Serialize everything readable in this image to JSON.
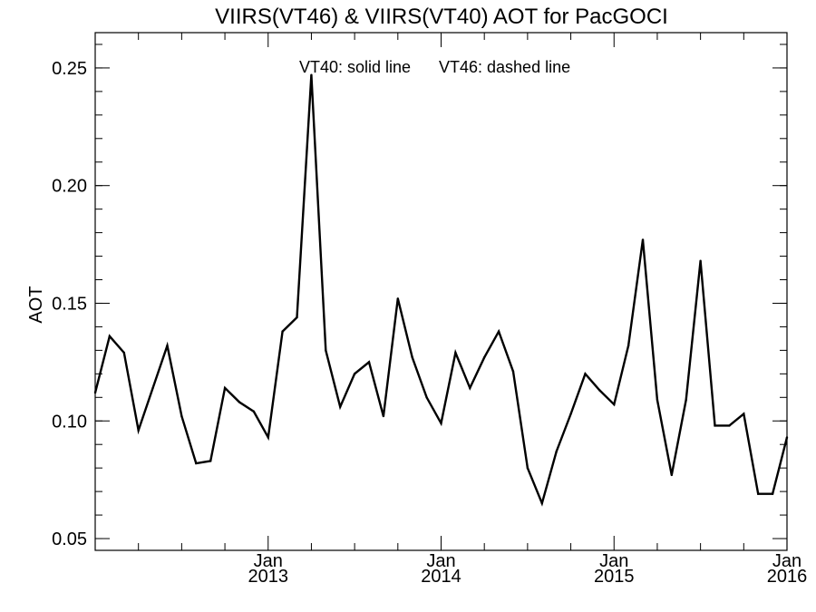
{
  "chart_data": {
    "type": "line",
    "title": "VIIRS(VT46) & VIIRS(VT40)  AOT for PacGOCI",
    "ylabel": "AOT",
    "xlabel": "",
    "annotation_solid": "VT40: solid line",
    "annotation_dashed": "VT46: dashed line",
    "xlim": [
      "2012-01-01",
      "2016-01-01"
    ],
    "ylim": [
      0.045,
      0.265
    ],
    "y_ticks": [
      "0.05",
      "0.10",
      "0.15",
      "0.20",
      "0.25"
    ],
    "y_tick_values": [
      0.05,
      0.1,
      0.15,
      0.2,
      0.25
    ],
    "x_ticks": [
      {
        "date": "2013-01-01",
        "month": "Jan",
        "year": "2013"
      },
      {
        "date": "2014-01-01",
        "month": "Jan",
        "year": "2014"
      },
      {
        "date": "2015-01-01",
        "month": "Jan",
        "year": "2015"
      },
      {
        "date": "2016-01-01",
        "month": "Jan",
        "year": "2016"
      }
    ],
    "series": [
      {
        "style": "solid",
        "color": "#000000",
        "x": [
          "2012-01",
          "2012-02",
          "2012-03",
          "2012-04",
          "2012-05",
          "2012-06",
          "2012-07",
          "2012-08",
          "2012-09",
          "2012-10",
          "2012-11",
          "2012-12",
          "2013-01",
          "2013-02",
          "2013-03",
          "2013-04",
          "2013-05",
          "2013-06",
          "2013-07",
          "2013-08",
          "2013-09",
          "2013-10",
          "2013-11",
          "2013-12",
          "2014-01",
          "2014-02",
          "2014-03",
          "2014-04",
          "2014-05",
          "2014-06",
          "2014-07",
          "2014-08",
          "2014-09",
          "2014-10",
          "2014-11",
          "2014-12",
          "2015-01",
          "2015-02",
          "2015-03",
          "2015-04",
          "2015-05",
          "2015-06",
          "2015-07",
          "2015-08",
          "2015-09",
          "2015-10",
          "2015-11",
          "2015-12",
          "2016-01"
        ],
        "y": [
          0.112,
          0.136,
          0.129,
          0.096,
          0.114,
          0.132,
          0.102,
          0.082,
          0.083,
          0.114,
          0.108,
          0.104,
          0.093,
          0.138,
          0.144,
          0.247,
          0.13,
          0.106,
          0.12,
          0.125,
          0.102,
          0.152,
          0.127,
          0.11,
          0.099,
          0.129,
          0.114,
          0.127,
          0.138,
          0.121,
          0.08,
          0.065,
          0.087,
          0.103,
          0.12,
          0.113,
          0.107,
          0.132,
          0.177,
          0.109,
          0.077,
          0.109,
          0.168,
          0.098,
          0.098,
          0.103,
          0.069,
          0.069,
          0.093
        ]
      }
    ],
    "grid": false
  }
}
